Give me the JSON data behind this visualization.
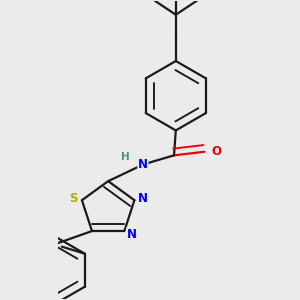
{
  "bg_color": "#ebebeb",
  "bond_color": "#1a1a1a",
  "bond_width": 1.6,
  "atom_colors": {
    "N": "#0000ee",
    "O": "#ee0000",
    "S": "#bbaa00",
    "H": "#4a9090",
    "C": "#1a1a1a"
  },
  "font_size_atom": 8.5
}
